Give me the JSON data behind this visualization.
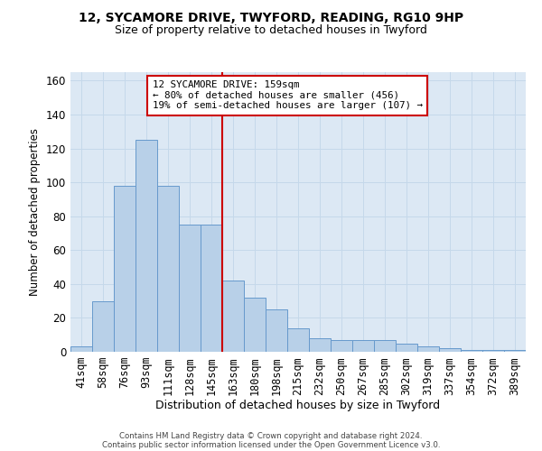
{
  "title_line1": "12, SYCAMORE DRIVE, TWYFORD, READING, RG10 9HP",
  "title_line2": "Size of property relative to detached houses in Twyford",
  "xlabel": "Distribution of detached houses by size in Twyford",
  "ylabel": "Number of detached properties",
  "categories": [
    "41sqm",
    "58sqm",
    "76sqm",
    "93sqm",
    "111sqm",
    "128sqm",
    "145sqm",
    "163sqm",
    "180sqm",
    "198sqm",
    "215sqm",
    "232sqm",
    "250sqm",
    "267sqm",
    "285sqm",
    "302sqm",
    "319sqm",
    "337sqm",
    "354sqm",
    "372sqm",
    "389sqm"
  ],
  "values": [
    3,
    30,
    98,
    125,
    98,
    75,
    75,
    42,
    32,
    25,
    14,
    8,
    7,
    7,
    7,
    5,
    3,
    2,
    1,
    1,
    1
  ],
  "bar_color": "#b8d0e8",
  "bar_edge_color": "#6699cc",
  "grid_color": "#c5d8ea",
  "vline_index": 7,
  "vline_color": "#cc0000",
  "annotation_title": "12 SYCAMORE DRIVE: 159sqm",
  "annotation_line1": "← 80% of detached houses are smaller (456)",
  "annotation_line2": "19% of semi-detached houses are larger (107) →",
  "annotation_box_edgecolor": "#cc0000",
  "ylim": [
    0,
    165
  ],
  "yticks": [
    0,
    20,
    40,
    60,
    80,
    100,
    120,
    140,
    160
  ],
  "background_color": "#dce8f4",
  "footer_line1": "Contains HM Land Registry data © Crown copyright and database right 2024.",
  "footer_line2": "Contains public sector information licensed under the Open Government Licence v3.0."
}
